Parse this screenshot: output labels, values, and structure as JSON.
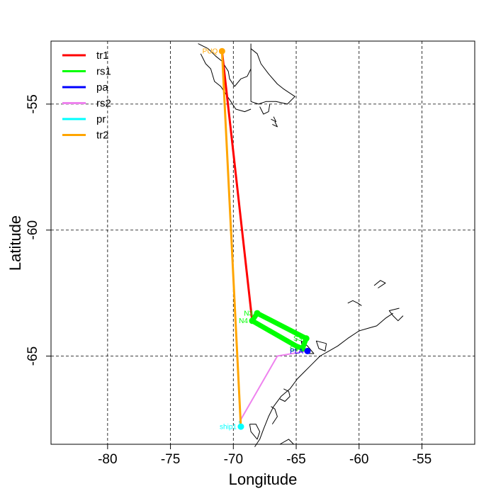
{
  "chart_data": {
    "type": "line",
    "title": "",
    "xlabel": "Longitude",
    "ylabel": "Latitude",
    "xlim": [
      -84.5,
      -50.8
    ],
    "ylim": [
      -68.5,
      -52.5
    ],
    "xticks": [
      -80,
      -75,
      -70,
      -65,
      -60,
      -55
    ],
    "yticks": [
      -55,
      -60,
      -65
    ],
    "grid": true,
    "legend_position": "top-left",
    "coastline_color": "#000000",
    "legend": [
      {
        "name": "tr1",
        "color": "#ff0000"
      },
      {
        "name": "rs1",
        "color": "#00ff00"
      },
      {
        "name": "pa",
        "color": "#0000ff"
      },
      {
        "name": "rs2",
        "color": "#ee82ee"
      },
      {
        "name": "pr",
        "color": "#00ffff"
      },
      {
        "name": "tr2",
        "color": "#ffa500"
      }
    ],
    "series": [
      {
        "name": "tr1",
        "color": "#ff0000",
        "width": 3,
        "points": [
          [
            -70.9,
            -52.9
          ],
          [
            -68.5,
            -63.6
          ]
        ]
      },
      {
        "name": "rs1",
        "color": "#00ff00",
        "width": 7,
        "points": [
          [
            -68.5,
            -63.6
          ],
          [
            -68.1,
            -63.3
          ],
          [
            -64.2,
            -64.3
          ],
          [
            -64.5,
            -64.7
          ],
          [
            -65.0,
            -64.6
          ],
          [
            -68.5,
            -63.6
          ]
        ]
      },
      {
        "name": "pa",
        "color": "#0000ff",
        "width": 2,
        "points": [
          [
            -64.5,
            -64.7
          ],
          [
            -64.1,
            -64.8
          ]
        ]
      },
      {
        "name": "rs2",
        "color": "#ee82ee",
        "width": 2,
        "points": [
          [
            -64.1,
            -64.8
          ],
          [
            -66.5,
            -65.0
          ],
          [
            -69.5,
            -67.6
          ]
        ]
      },
      {
        "name": "pr",
        "color": "#00ffff",
        "width": 2,
        "points": [
          [
            -69.5,
            -67.6
          ],
          [
            -69.4,
            -67.8
          ]
        ]
      },
      {
        "name": "tr2",
        "color": "#ffa500",
        "width": 3,
        "points": [
          [
            -69.4,
            -67.8
          ],
          [
            -70.9,
            -52.9
          ]
        ]
      }
    ],
    "points": [
      {
        "label": "PUQ",
        "color": "#ffa500",
        "x": -70.9,
        "y": -52.9,
        "anchor": "end"
      },
      {
        "label": "N3",
        "color": "#00ff00",
        "x": -68.1,
        "y": -63.3,
        "anchor": "end"
      },
      {
        "label": "N4",
        "color": "#00ff00",
        "x": -68.5,
        "y": -63.6,
        "anchor": "end"
      },
      {
        "label": "S3",
        "color": "#00ff00",
        "x": -64.2,
        "y": -64.3,
        "anchor": "end"
      },
      {
        "label": "S4",
        "color": "#00ff00",
        "x": -64.5,
        "y": -64.7,
        "anchor": "end"
      },
      {
        "label": "PLA",
        "color": "#0000ff",
        "x": -64.1,
        "y": -64.8,
        "anchor": "end"
      },
      {
        "label": "ship1",
        "color": "#00ffff",
        "x": -69.4,
        "y": -67.8,
        "anchor": "end"
      }
    ],
    "coastlines": [
      [
        [
          -72.8,
          -52.6
        ],
        [
          -72.0,
          -52.8
        ],
        [
          -71.4,
          -53.1
        ],
        [
          -70.9,
          -53.3
        ],
        [
          -70.4,
          -53.7
        ],
        [
          -70.3,
          -54.0
        ],
        [
          -69.9,
          -54.3
        ],
        [
          -69.4,
          -54.0
        ],
        [
          -68.9,
          -53.9
        ],
        [
          -68.6,
          -53.6
        ]
      ],
      [
        [
          -68.6,
          -52.8
        ],
        [
          -68.1,
          -53.0
        ],
        [
          -67.8,
          -53.4
        ],
        [
          -67.2,
          -53.8
        ],
        [
          -66.5,
          -54.2
        ],
        [
          -66.0,
          -54.4
        ],
        [
          -65.1,
          -54.7
        ],
        [
          -65.7,
          -55.0
        ],
        [
          -66.6,
          -54.9
        ],
        [
          -67.4,
          -54.9
        ],
        [
          -68.0,
          -55.0
        ],
        [
          -68.6,
          -54.9
        ]
      ],
      [
        [
          -68.6,
          -52.6
        ],
        [
          -68.6,
          -54.9
        ]
      ],
      [
        [
          -72.6,
          -53.0
        ],
        [
          -72.2,
          -53.4
        ],
        [
          -71.8,
          -53.6
        ],
        [
          -71.5,
          -54.1
        ],
        [
          -71.0,
          -54.3
        ],
        [
          -70.6,
          -54.6
        ],
        [
          -70.2,
          -54.9
        ],
        [
          -69.8,
          -55.2
        ],
        [
          -69.1,
          -55.3
        ],
        [
          -68.6,
          -55.2
        ]
      ],
      [
        [
          -67.9,
          -55.1
        ],
        [
          -67.6,
          -55.4
        ],
        [
          -67.2,
          -55.3
        ],
        [
          -67.1,
          -55.0
        ]
      ],
      [
        [
          -67.0,
          -55.6
        ],
        [
          -66.6,
          -55.7
        ],
        [
          -66.8,
          -55.5
        ]
      ],
      [
        [
          -66.9,
          -55.8
        ],
        [
          -66.5,
          -55.9
        ],
        [
          -66.7,
          -55.7
        ]
      ],
      [
        [
          -60.9,
          -62.9
        ],
        [
          -60.5,
          -62.8
        ],
        [
          -60.1,
          -62.9
        ],
        [
          -59.8,
          -63.0
        ]
      ],
      [
        [
          -58.8,
          -62.2
        ],
        [
          -58.3,
          -62.0
        ],
        [
          -57.9,
          -62.1
        ],
        [
          -58.5,
          -62.3
        ]
      ],
      [
        [
          -57.3,
          -63.3
        ],
        [
          -57.9,
          -63.5
        ],
        [
          -58.6,
          -63.8
        ],
        [
          -59.3,
          -63.9
        ],
        [
          -60.0,
          -64.0
        ],
        [
          -60.9,
          -64.3
        ],
        [
          -61.7,
          -64.6
        ],
        [
          -62.4,
          -64.8
        ],
        [
          -63.1,
          -65.0
        ],
        [
          -63.7,
          -65.3
        ],
        [
          -64.3,
          -65.6
        ],
        [
          -64.9,
          -65.9
        ],
        [
          -65.5,
          -66.3
        ],
        [
          -66.2,
          -66.6
        ],
        [
          -66.8,
          -67.0
        ],
        [
          -67.2,
          -67.4
        ],
        [
          -67.6,
          -67.9
        ],
        [
          -67.9,
          -68.3
        ],
        [
          -68.3,
          -68.6
        ]
      ],
      [
        [
          -56.8,
          -63.1
        ],
        [
          -57.6,
          -63.2
        ],
        [
          -57.3,
          -63.4
        ],
        [
          -56.9,
          -63.6
        ],
        [
          -56.5,
          -63.4
        ]
      ],
      [
        [
          -62.6,
          -64.5
        ],
        [
          -63.4,
          -64.4
        ],
        [
          -63.2,
          -64.7
        ],
        [
          -62.7,
          -64.8
        ],
        [
          -62.6,
          -64.5
        ]
      ],
      [
        [
          -64.6,
          -64.4
        ],
        [
          -64.1,
          -64.6
        ],
        [
          -63.6,
          -64.9
        ],
        [
          -64.0,
          -64.9
        ],
        [
          -64.5,
          -64.7
        ],
        [
          -64.6,
          -64.4
        ]
      ],
      [
        [
          -66.0,
          -66.3
        ],
        [
          -65.6,
          -66.4
        ],
        [
          -65.5,
          -66.6
        ],
        [
          -65.9,
          -66.8
        ],
        [
          -66.3,
          -66.7
        ]
      ],
      [
        [
          -67.0,
          -67.0
        ],
        [
          -66.7,
          -67.1
        ],
        [
          -66.5,
          -67.4
        ],
        [
          -66.9,
          -67.7
        ]
      ],
      [
        [
          -68.7,
          -67.7
        ],
        [
          -68.2,
          -67.7
        ],
        [
          -67.9,
          -68.0
        ],
        [
          -68.1,
          -68.3
        ],
        [
          -68.6,
          -68.0
        ],
        [
          -68.7,
          -67.7
        ]
      ],
      [
        [
          -66.3,
          -68.5
        ],
        [
          -65.6,
          -68.3
        ],
        [
          -65.2,
          -68.5
        ]
      ]
    ]
  }
}
